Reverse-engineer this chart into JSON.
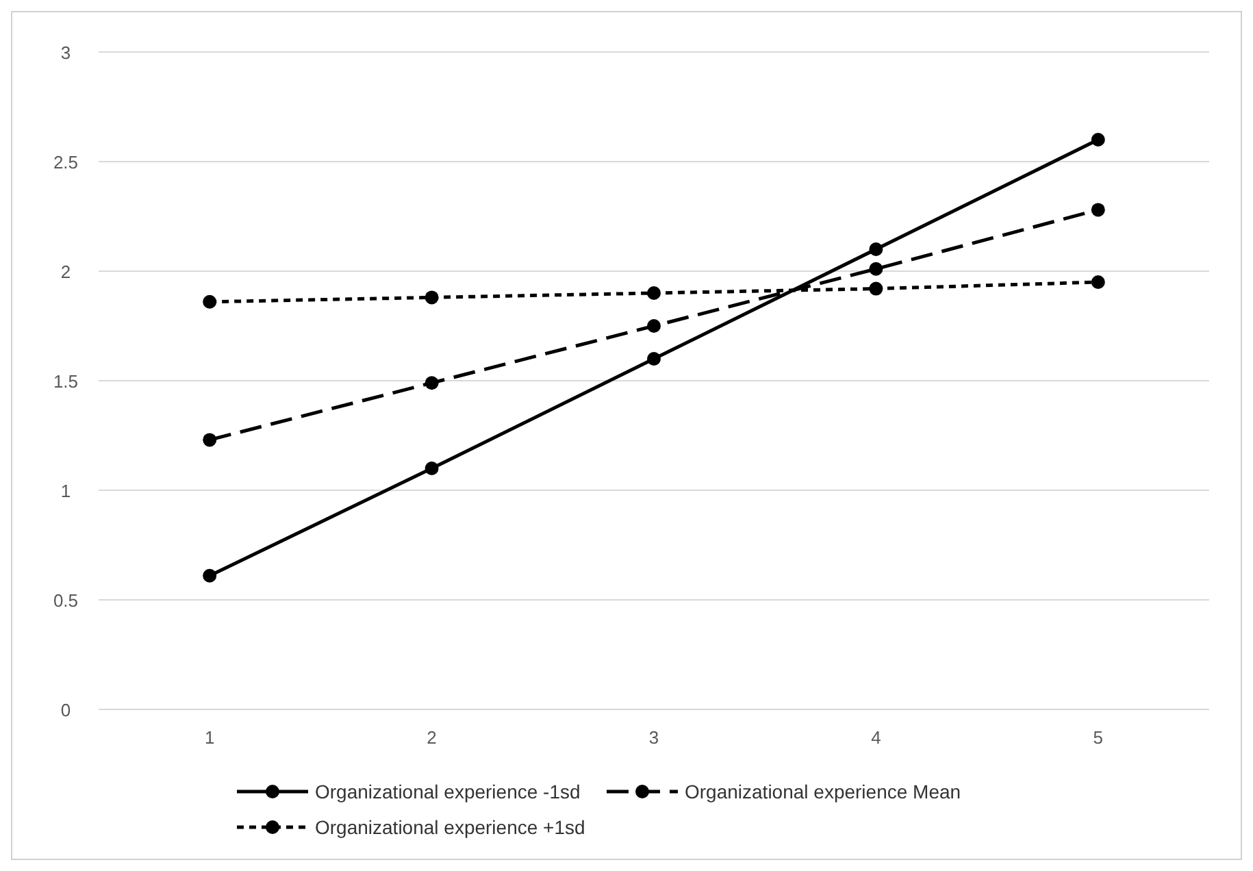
{
  "chart_data": {
    "type": "line",
    "categories": [
      "1",
      "2",
      "3",
      "4",
      "5"
    ],
    "series": [
      {
        "name": "Organizational experience -1sd",
        "color": "#000000",
        "line_style": "solid",
        "values": [
          0.61,
          1.1,
          1.6,
          2.1,
          2.6
        ]
      },
      {
        "name": "Organizational experience Mean",
        "color": "#000000",
        "line_style": "dashed",
        "values": [
          1.23,
          1.49,
          1.75,
          2.01,
          2.28
        ]
      },
      {
        "name": "Organizational experience +1sd",
        "color": "#000000",
        "line_style": "dotted",
        "values": [
          1.86,
          1.88,
          1.9,
          1.92,
          1.95
        ]
      }
    ],
    "ylim": [
      0,
      3
    ],
    "yticks": [
      0,
      0.5,
      1,
      1.5,
      2,
      2.5,
      3
    ],
    "grid": "y",
    "legend": "bottom",
    "marker": "circle"
  }
}
